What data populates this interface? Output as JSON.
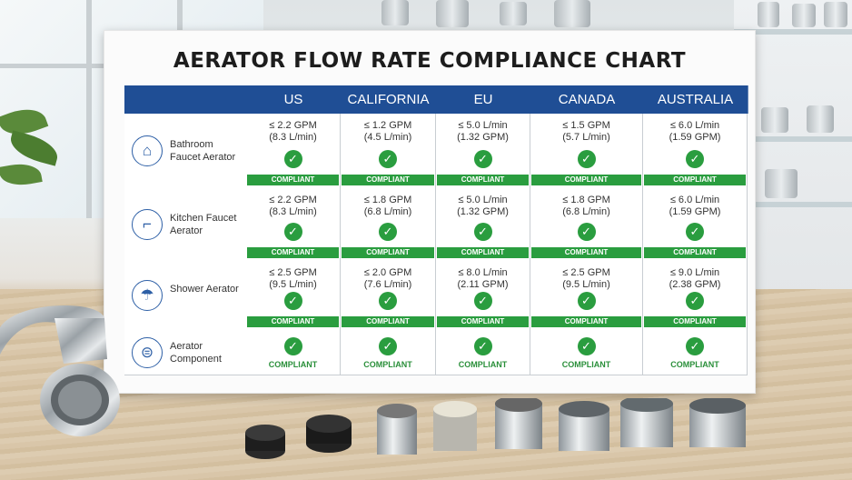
{
  "chart": {
    "title": "AERATOR FLOW RATE COMPLIANCE CHART",
    "columns": [
      "US",
      "CALIFORNIA",
      "EU",
      "CANADA",
      "AUSTRALIA"
    ],
    "rows": [
      {
        "icon": "faucet-icon",
        "label": "Bathroom Faucet Aerator",
        "cells": [
          {
            "value": "≤ 2.2 GPM",
            "sub": "(8.3 L/min)",
            "status": "COMPLIANT"
          },
          {
            "value": "≤ 1.2 GPM",
            "sub": "(4.5 L/min)",
            "status": "COMPLIANT"
          },
          {
            "value": "≤ 5.0 L/min",
            "sub": "(1.32 GPM)",
            "status": "COMPLIANT"
          },
          {
            "value": "≤ 1.5 GPM",
            "sub": "(5.7 L/min)",
            "status": "COMPLIANT"
          },
          {
            "value": "≤ 6.0 L/min",
            "sub": "(1.59 GPM)",
            "status": "COMPLIANT"
          }
        ]
      },
      {
        "icon": "kitchen-faucet-icon",
        "label": "Kitchen Faucet Aerator",
        "cells": [
          {
            "value": "≤ 2.2 GPM",
            "sub": "(8.3 L/min)",
            "status": "COMPLIANT"
          },
          {
            "value": "≤ 1.8 GPM",
            "sub": "(6.8 L/min)",
            "status": "COMPLIANT"
          },
          {
            "value": "≤ 5.0 L/min",
            "sub": "(1.32 GPM)",
            "status": "COMPLIANT"
          },
          {
            "value": "≤ 1.8 GPM",
            "sub": "(6.8 L/min)",
            "status": "COMPLIANT"
          },
          {
            "value": "≤ 6.0 L/min",
            "sub": "(1.59 GPM)",
            "status": "COMPLIANT"
          }
        ]
      },
      {
        "icon": "shower-icon",
        "label": "Shower Aerator",
        "cells": [
          {
            "value": "≤ 2.5 GPM",
            "sub": "(9.5 L/min)",
            "status": "COMPLIANT"
          },
          {
            "value": "≤ 2.0 GPM",
            "sub": "(7.6 L/min)",
            "status": "COMPLIANT"
          },
          {
            "value": "≤ 8.0 L/min",
            "sub": "(2.11 GPM)",
            "status": "COMPLIANT"
          },
          {
            "value": "≤ 2.5 GPM",
            "sub": "(9.5 L/min)",
            "status": "COMPLIANT"
          },
          {
            "value": "≤ 9.0 L/min",
            "sub": "(2.38 GPM)",
            "status": "COMPLIANT"
          }
        ]
      },
      {
        "icon": "aerator-component-icon",
        "label": "Aerator Component",
        "cells": [
          {
            "status": "COMPLIANT"
          },
          {
            "status": "COMPLIANT"
          },
          {
            "status": "COMPLIANT"
          },
          {
            "status": "COMPLIANT"
          },
          {
            "status": "COMPLIANT"
          }
        ]
      }
    ],
    "colors": {
      "header": "#1f4e95",
      "compliant": "#2a9d3f"
    }
  }
}
